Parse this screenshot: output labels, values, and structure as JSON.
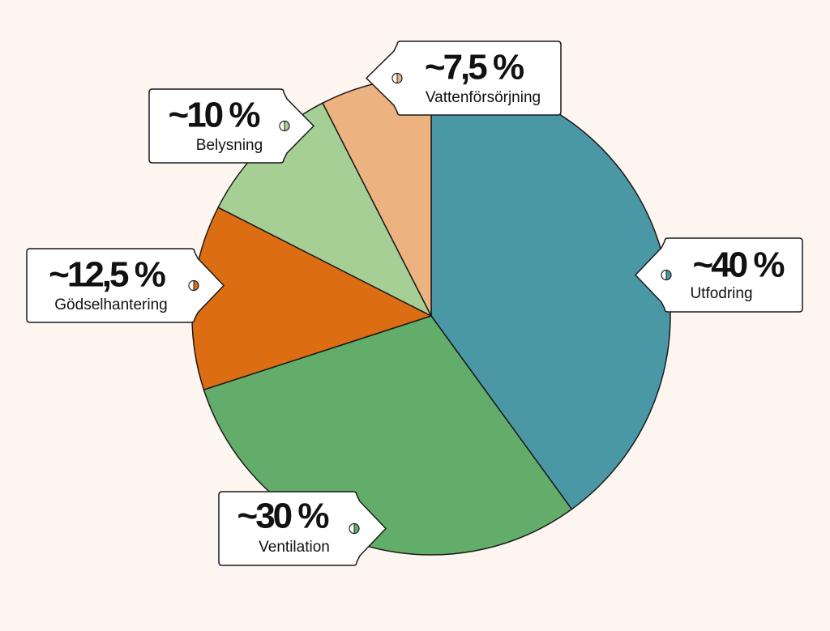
{
  "chart_data": {
    "type": "pie",
    "categories": [
      "Utfodring",
      "Ventilation",
      "Gödselhantering",
      "Belysning",
      "Vattenförsörjning"
    ],
    "values": [
      40,
      30,
      12.5,
      10,
      7.5
    ],
    "value_labels": [
      "~40 %",
      "~30 %",
      "~12,5 %",
      "~10 %",
      "~7,5 %"
    ],
    "colors": [
      "#4a98a6",
      "#63ad6a",
      "#dc6d13",
      "#a6cf96",
      "#ecb27f"
    ]
  }
}
